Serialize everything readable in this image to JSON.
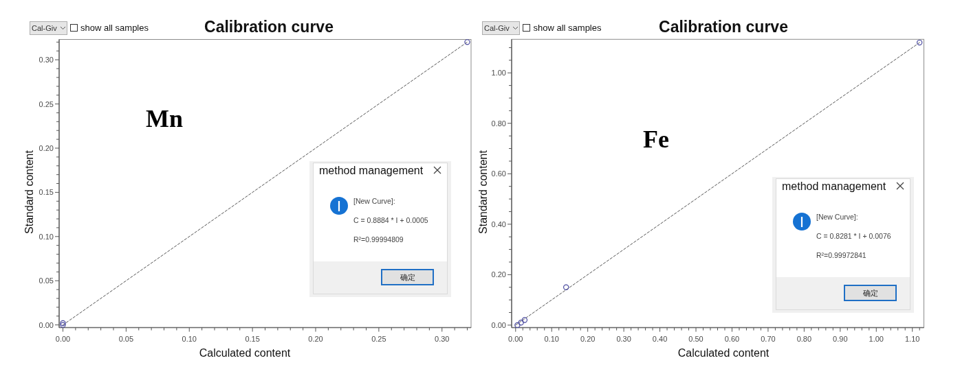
{
  "chart_data": [
    {
      "type": "scatter",
      "title": "Calibration curve",
      "xlabel": "Calculated content",
      "ylabel": "Standard content",
      "annotations": [
        "Cal-Giv",
        "show all samples",
        "Mn",
        "method management",
        "[New Curve]:",
        "C = 0.8884 * I + 0.0005",
        "R²=0.99994809",
        "确定"
      ],
      "xlim": [
        -0.003,
        0.323
      ],
      "ylim": [
        -0.003,
        0.323
      ],
      "xticks": [
        {
          "value": 0,
          "label": "0.00"
        },
        {
          "value": 0.01,
          "label": null
        },
        {
          "value": 0.02,
          "label": null
        },
        {
          "value": 0.03,
          "label": null
        },
        {
          "value": 0.04,
          "label": null
        },
        {
          "value": 0.05,
          "label": "0.05"
        },
        {
          "value": 0.06,
          "label": null
        },
        {
          "value": 0.07,
          "label": null
        },
        {
          "value": 0.08,
          "label": null
        },
        {
          "value": 0.09,
          "label": null
        },
        {
          "value": 0.1,
          "label": "0.10"
        },
        {
          "value": 0.11,
          "label": null
        },
        {
          "value": 0.12,
          "label": null
        },
        {
          "value": 0.13,
          "label": null
        },
        {
          "value": 0.14,
          "label": null
        },
        {
          "value": 0.15,
          "label": "0.15"
        },
        {
          "value": 0.16,
          "label": null
        },
        {
          "value": 0.17,
          "label": null
        },
        {
          "value": 0.18,
          "label": null
        },
        {
          "value": 0.19,
          "label": null
        },
        {
          "value": 0.2,
          "label": "0.20"
        },
        {
          "value": 0.21,
          "label": null
        },
        {
          "value": 0.22,
          "label": null
        },
        {
          "value": 0.23,
          "label": null
        },
        {
          "value": 0.24,
          "label": null
        },
        {
          "value": 0.25,
          "label": "0.25"
        },
        {
          "value": 0.26,
          "label": null
        },
        {
          "value": 0.27,
          "label": null
        },
        {
          "value": 0.28,
          "label": null
        },
        {
          "value": 0.29,
          "label": null
        },
        {
          "value": 0.3,
          "label": "0.30"
        },
        {
          "value": 0.31,
          "label": null
        },
        {
          "value": 0.32,
          "label": null
        }
      ],
      "yticks": [
        {
          "value": 0,
          "label": "0.00"
        },
        {
          "value": 0.01,
          "label": null
        },
        {
          "value": 0.02,
          "label": null
        },
        {
          "value": 0.03,
          "label": null
        },
        {
          "value": 0.04,
          "label": null
        },
        {
          "value": 0.05,
          "label": "0.05"
        },
        {
          "value": 0.06,
          "label": null
        },
        {
          "value": 0.07,
          "label": null
        },
        {
          "value": 0.08,
          "label": null
        },
        {
          "value": 0.09,
          "label": null
        },
        {
          "value": 0.1,
          "label": "0.10"
        },
        {
          "value": 0.11,
          "label": null
        },
        {
          "value": 0.12,
          "label": null
        },
        {
          "value": 0.13,
          "label": null
        },
        {
          "value": 0.14,
          "label": null
        },
        {
          "value": 0.15,
          "label": "0.15"
        },
        {
          "value": 0.16,
          "label": null
        },
        {
          "value": 0.17,
          "label": null
        },
        {
          "value": 0.18,
          "label": null
        },
        {
          "value": 0.19,
          "label": null
        },
        {
          "value": 0.2,
          "label": "0.20"
        },
        {
          "value": 0.21,
          "label": null
        },
        {
          "value": 0.22,
          "label": null
        },
        {
          "value": 0.23,
          "label": null
        },
        {
          "value": 0.24,
          "label": null
        },
        {
          "value": 0.25,
          "label": "0.25"
        },
        {
          "value": 0.26,
          "label": null
        },
        {
          "value": 0.27,
          "label": null
        },
        {
          "value": 0.28,
          "label": null
        },
        {
          "value": 0.29,
          "label": null
        },
        {
          "value": 0.3,
          "label": "0.30"
        },
        {
          "value": 0.31,
          "label": null
        },
        {
          "value": 0.32,
          "label": null
        }
      ],
      "series": [
        {
          "x": [
            0,
            0,
            0.32
          ],
          "values": [
            0,
            0.002,
            0.32
          ],
          "color": "#4a4aa0",
          "marker": "circle"
        },
        {
          "type": "line",
          "x": [
            0,
            0.32
          ],
          "values": [
            0,
            0.32
          ],
          "color": "#555555",
          "line_style": "dashed"
        }
      ]
    },
    {
      "type": "scatter",
      "title": "Calibration curve",
      "xlabel": "Calculated content",
      "ylabel": "Standard content",
      "annotations": [
        "Cal-Giv",
        "show all samples",
        "Fe",
        "method management",
        "[New Curve]:",
        "C = 0.8281 * I + 0.0076",
        "R²=0.99972841",
        "确定"
      ],
      "xlim": [
        -0.011,
        1.132
      ],
      "ylim": [
        -0.01,
        1.133
      ],
      "xticks": [
        {
          "value": 0,
          "label": "0.00"
        },
        {
          "value": 0.02,
          "label": null
        },
        {
          "value": 0.04,
          "label": null
        },
        {
          "value": 0.06,
          "label": null
        },
        {
          "value": 0.08,
          "label": null
        },
        {
          "value": 0.1,
          "label": "0.10"
        },
        {
          "value": 0.12,
          "label": null
        },
        {
          "value": 0.14,
          "label": null
        },
        {
          "value": 0.16,
          "label": null
        },
        {
          "value": 0.18,
          "label": null
        },
        {
          "value": 0.2,
          "label": "0.20"
        },
        {
          "value": 0.22,
          "label": null
        },
        {
          "value": 0.24,
          "label": null
        },
        {
          "value": 0.26,
          "label": null
        },
        {
          "value": 0.28,
          "label": null
        },
        {
          "value": 0.3,
          "label": "0.30"
        },
        {
          "value": 0.32,
          "label": null
        },
        {
          "value": 0.34,
          "label": null
        },
        {
          "value": 0.36,
          "label": null
        },
        {
          "value": 0.38,
          "label": null
        },
        {
          "value": 0.4,
          "label": "0.40"
        },
        {
          "value": 0.42,
          "label": null
        },
        {
          "value": 0.44,
          "label": null
        },
        {
          "value": 0.46,
          "label": null
        },
        {
          "value": 0.48,
          "label": null
        },
        {
          "value": 0.5,
          "label": "0.50"
        },
        {
          "value": 0.52,
          "label": null
        },
        {
          "value": 0.54,
          "label": null
        },
        {
          "value": 0.56,
          "label": null
        },
        {
          "value": 0.58,
          "label": null
        },
        {
          "value": 0.6,
          "label": "0.60"
        },
        {
          "value": 0.62,
          "label": null
        },
        {
          "value": 0.64,
          "label": null
        },
        {
          "value": 0.66,
          "label": null
        },
        {
          "value": 0.68,
          "label": null
        },
        {
          "value": 0.7,
          "label": "0.70"
        },
        {
          "value": 0.72,
          "label": null
        },
        {
          "value": 0.74,
          "label": null
        },
        {
          "value": 0.76,
          "label": null
        },
        {
          "value": 0.78,
          "label": null
        },
        {
          "value": 0.8,
          "label": "0.80"
        },
        {
          "value": 0.82,
          "label": null
        },
        {
          "value": 0.84,
          "label": null
        },
        {
          "value": 0.86,
          "label": null
        },
        {
          "value": 0.88,
          "label": null
        },
        {
          "value": 0.9,
          "label": "0.90"
        },
        {
          "value": 0.92,
          "label": null
        },
        {
          "value": 0.94,
          "label": null
        },
        {
          "value": 0.96,
          "label": null
        },
        {
          "value": 0.98,
          "label": null
        },
        {
          "value": 1.0,
          "label": "1.00"
        },
        {
          "value": 1.02,
          "label": null
        },
        {
          "value": 1.04,
          "label": null
        },
        {
          "value": 1.06,
          "label": null
        },
        {
          "value": 1.08,
          "label": null
        },
        {
          "value": 1.1,
          "label": "1.10"
        },
        {
          "value": 1.12,
          "label": null
        }
      ],
      "yticks": [
        {
          "value": 0,
          "label": "0.00"
        },
        {
          "value": 0.05,
          "label": null
        },
        {
          "value": 0.1,
          "label": null
        },
        {
          "value": 0.15,
          "label": null
        },
        {
          "value": 0.2,
          "label": "0.20"
        },
        {
          "value": 0.25,
          "label": null
        },
        {
          "value": 0.3,
          "label": null
        },
        {
          "value": 0.35,
          "label": null
        },
        {
          "value": 0.4,
          "label": "0.40"
        },
        {
          "value": 0.45,
          "label": null
        },
        {
          "value": 0.5,
          "label": null
        },
        {
          "value": 0.55,
          "label": null
        },
        {
          "value": 0.6,
          "label": "0.60"
        },
        {
          "value": 0.65,
          "label": null
        },
        {
          "value": 0.7,
          "label": null
        },
        {
          "value": 0.75,
          "label": null
        },
        {
          "value": 0.8,
          "label": "0.80"
        },
        {
          "value": 0.85,
          "label": null
        },
        {
          "value": 0.9,
          "label": null
        },
        {
          "value": 0.95,
          "label": null
        },
        {
          "value": 1.0,
          "label": "1.00"
        },
        {
          "value": 1.05,
          "label": null
        },
        {
          "value": 1.1,
          "label": null
        }
      ],
      "series": [
        {
          "x": [
            0.005,
            0.015,
            0.025,
            0.14,
            1.12
          ],
          "values": [
            0,
            0.01,
            0.02,
            0.15,
            1.12
          ],
          "color": "#4a4aa0",
          "marker": "circle"
        },
        {
          "type": "line",
          "x": [
            0,
            1.12
          ],
          "values": [
            0,
            1.12
          ],
          "color": "#555555",
          "line_style": "dashed"
        }
      ]
    }
  ]
}
